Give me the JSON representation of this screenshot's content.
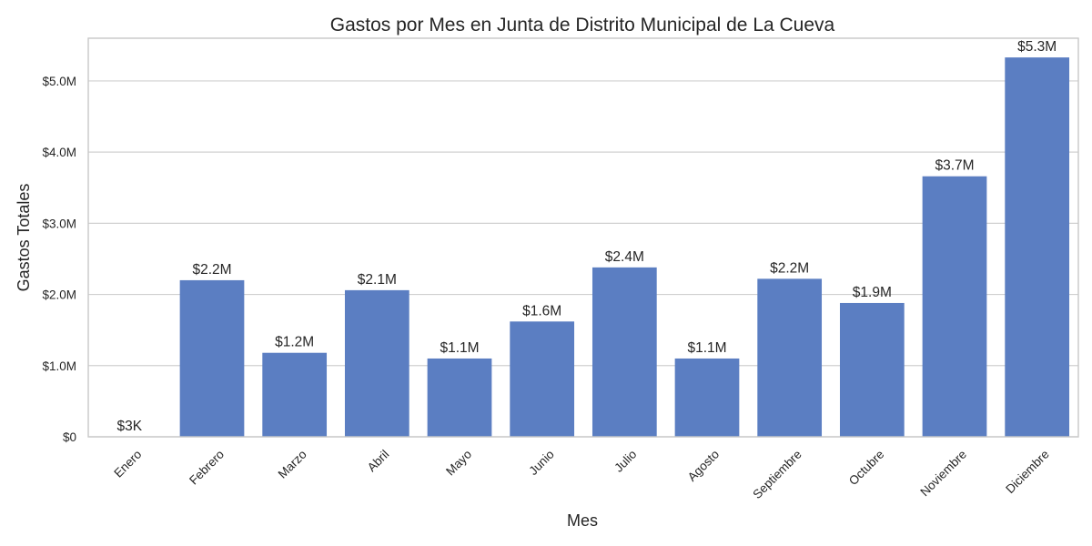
{
  "colors": {
    "bar": "#5b7ec2",
    "grid": "#d0d0d0",
    "text": "#262626"
  },
  "chart_data": {
    "type": "bar",
    "title": "Gastos por Mes en Junta de Distrito Municipal de La Cueva",
    "xlabel": "Mes",
    "ylabel": "Gastos Totales",
    "categories": [
      "Enero",
      "Febrero",
      "Marzo",
      "Abril",
      "Mayo",
      "Junio",
      "Julio",
      "Agosto",
      "Septiembre",
      "Octubre",
      "Noviembre",
      "Diciembre"
    ],
    "values": [
      3000,
      2200000,
      1180000,
      2060000,
      1100000,
      1620000,
      2380000,
      1100000,
      2220000,
      1880000,
      3660000,
      5330000
    ],
    "value_labels": [
      "$3K",
      "$2.2M",
      "$1.2M",
      "$2.1M",
      "$1.1M",
      "$1.6M",
      "$2.4M",
      "$1.1M",
      "$2.2M",
      "$1.9M",
      "$3.7M",
      "$5.3M"
    ],
    "yticks": [
      0,
      1000000,
      2000000,
      3000000,
      4000000,
      5000000
    ],
    "ytick_labels": [
      "$0",
      "$1.0M",
      "$2.0M",
      "$3.0M",
      "$4.0M",
      "$5.0M"
    ],
    "ylim": [
      0,
      5600000
    ],
    "grid": "horizontal"
  }
}
